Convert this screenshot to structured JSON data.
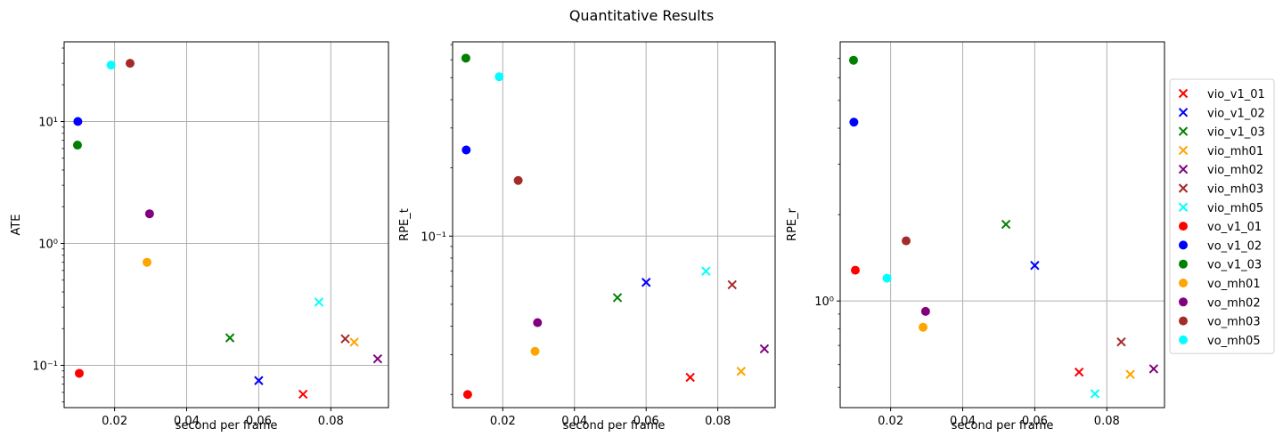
{
  "title": "Quantitative Results",
  "chart_data": [
    {
      "type": "scatter",
      "ylabel": "ATE",
      "xlabel": "second per frame",
      "yscale": "log",
      "xlim": [
        0.006,
        0.096
      ],
      "ylim": [
        0.045,
        45
      ],
      "xticks": [
        0.02,
        0.04,
        0.06,
        0.08
      ],
      "xtick_labels": [
        "0.02",
        "0.04",
        "0.06",
        "0.08"
      ],
      "yticks": [
        0.1,
        1,
        10
      ],
      "ytick_labels": [
        "10⁻¹",
        "10⁰",
        "10¹"
      ],
      "grid": true,
      "series": [
        {
          "name": "vio_v1_01",
          "x": 0.0723,
          "y": 0.058
        },
        {
          "name": "vio_v1_02",
          "x": 0.06,
          "y": 0.075
        },
        {
          "name": "vio_v1_03",
          "x": 0.052,
          "y": 0.168
        },
        {
          "name": "vio_mh01",
          "x": 0.0865,
          "y": 0.155
        },
        {
          "name": "vio_mh02",
          "x": 0.093,
          "y": 0.113
        },
        {
          "name": "vio_mh03",
          "x": 0.084,
          "y": 0.165
        },
        {
          "name": "vio_mh05",
          "x": 0.0767,
          "y": 0.33
        },
        {
          "name": "vo_v1_01",
          "x": 0.0102,
          "y": 0.086
        },
        {
          "name": "vo_v1_02",
          "x": 0.0098,
          "y": 10.0
        },
        {
          "name": "vo_v1_03",
          "x": 0.0097,
          "y": 6.4
        },
        {
          "name": "vo_mh01",
          "x": 0.029,
          "y": 0.7
        },
        {
          "name": "vo_mh02",
          "x": 0.0297,
          "y": 1.75
        },
        {
          "name": "vo_mh03",
          "x": 0.0243,
          "y": 30.0
        },
        {
          "name": "vo_mh05",
          "x": 0.019,
          "y": 29.0
        }
      ]
    },
    {
      "type": "scatter",
      "ylabel": "RPE_t",
      "xlabel": "second per frame",
      "yscale": "log",
      "xlim": [
        0.006,
        0.096
      ],
      "ylim": [
        0.0175,
        0.72
      ],
      "xticks": [
        0.02,
        0.04,
        0.06,
        0.08
      ],
      "xtick_labels": [
        "0.02",
        "0.04",
        "0.06",
        "0.08"
      ],
      "yticks": [
        0.1
      ],
      "ytick_labels": [
        "10⁻¹"
      ],
      "grid": true,
      "series": [
        {
          "name": "vio_v1_01",
          "x": 0.0723,
          "y": 0.0238
        },
        {
          "name": "vio_v1_02",
          "x": 0.06,
          "y": 0.0625
        },
        {
          "name": "vio_v1_03",
          "x": 0.052,
          "y": 0.0535
        },
        {
          "name": "vio_mh01",
          "x": 0.0865,
          "y": 0.0253
        },
        {
          "name": "vio_mh02",
          "x": 0.093,
          "y": 0.0318
        },
        {
          "name": "vio_mh03",
          "x": 0.084,
          "y": 0.061
        },
        {
          "name": "vio_mh05",
          "x": 0.0767,
          "y": 0.07
        },
        {
          "name": "vo_v1_01",
          "x": 0.0102,
          "y": 0.02
        },
        {
          "name": "vo_v1_02",
          "x": 0.0098,
          "y": 0.24
        },
        {
          "name": "vo_v1_03",
          "x": 0.0097,
          "y": 0.61
        },
        {
          "name": "vo_mh01",
          "x": 0.029,
          "y": 0.031
        },
        {
          "name": "vo_mh02",
          "x": 0.0297,
          "y": 0.0415
        },
        {
          "name": "vo_mh03",
          "x": 0.0243,
          "y": 0.176
        },
        {
          "name": "vo_mh05",
          "x": 0.019,
          "y": 0.505
        }
      ]
    },
    {
      "type": "scatter",
      "ylabel": "RPE_r",
      "xlabel": "second per frame",
      "yscale": "log",
      "xlim": [
        0.006,
        0.096
      ],
      "ylim": [
        0.425,
        8.0
      ],
      "xticks": [
        0.02,
        0.04,
        0.06,
        0.08
      ],
      "xtick_labels": [
        "0.02",
        "0.04",
        "0.06",
        "0.08"
      ],
      "yticks": [
        1
      ],
      "ytick_labels": [
        "10⁰"
      ],
      "grid": true,
      "series": [
        {
          "name": "vio_v1_01",
          "x": 0.0723,
          "y": 0.565
        },
        {
          "name": "vio_v1_02",
          "x": 0.06,
          "y": 1.33
        },
        {
          "name": "vio_v1_03",
          "x": 0.052,
          "y": 1.85
        },
        {
          "name": "vio_mh01",
          "x": 0.0865,
          "y": 0.555
        },
        {
          "name": "vio_mh02",
          "x": 0.093,
          "y": 0.58
        },
        {
          "name": "vio_mh03",
          "x": 0.084,
          "y": 0.72
        },
        {
          "name": "vio_mh05",
          "x": 0.0767,
          "y": 0.475
        },
        {
          "name": "vo_v1_01",
          "x": 0.0102,
          "y": 1.28
        },
        {
          "name": "vo_v1_02",
          "x": 0.0098,
          "y": 4.2
        },
        {
          "name": "vo_v1_03",
          "x": 0.0097,
          "y": 6.9
        },
        {
          "name": "vo_mh01",
          "x": 0.029,
          "y": 0.81
        },
        {
          "name": "vo_mh02",
          "x": 0.0297,
          "y": 0.92
        },
        {
          "name": "vo_mh03",
          "x": 0.0243,
          "y": 1.62
        },
        {
          "name": "vo_mh05",
          "x": 0.019,
          "y": 1.2
        }
      ]
    }
  ],
  "legend": {
    "placement": "right",
    "entries": [
      {
        "name": "vio_v1_01",
        "color": "#ff0000",
        "marker": "x"
      },
      {
        "name": "vio_v1_02",
        "color": "#0000ff",
        "marker": "x"
      },
      {
        "name": "vio_v1_03",
        "color": "#008000",
        "marker": "x"
      },
      {
        "name": "vio_mh01",
        "color": "#ffa500",
        "marker": "x"
      },
      {
        "name": "vio_mh02",
        "color": "#800080",
        "marker": "x"
      },
      {
        "name": "vio_mh03",
        "color": "#a52a2a",
        "marker": "x"
      },
      {
        "name": "vio_mh05",
        "color": "#00ffff",
        "marker": "x"
      },
      {
        "name": "vo_v1_01",
        "color": "#ff0000",
        "marker": "o"
      },
      {
        "name": "vo_v1_02",
        "color": "#0000ff",
        "marker": "o"
      },
      {
        "name": "vo_v1_03",
        "color": "#008000",
        "marker": "o"
      },
      {
        "name": "vo_mh01",
        "color": "#ffa500",
        "marker": "o"
      },
      {
        "name": "vo_mh02",
        "color": "#800080",
        "marker": "o"
      },
      {
        "name": "vo_mh03",
        "color": "#a52a2a",
        "marker": "o"
      },
      {
        "name": "vo_mh05",
        "color": "#00ffff",
        "marker": "o"
      }
    ]
  }
}
